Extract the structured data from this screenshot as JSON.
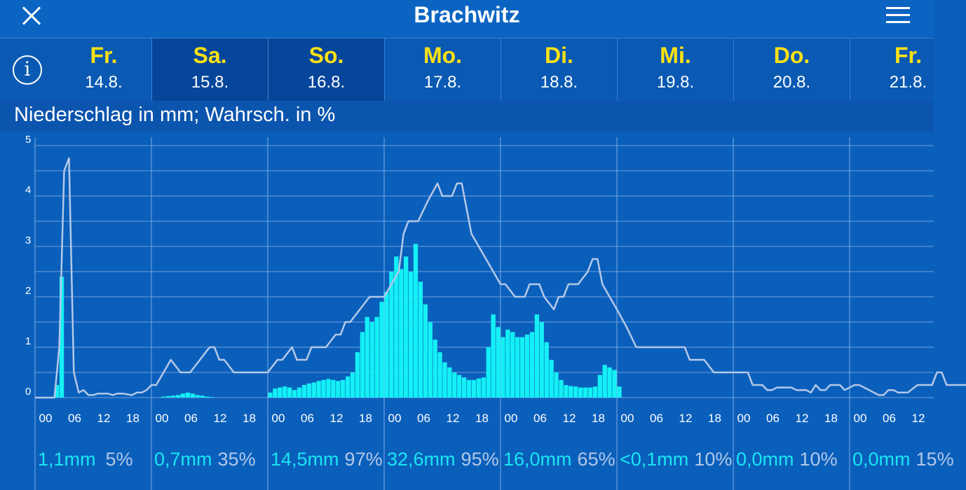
{
  "header": {
    "title": "Brachwitz",
    "close_icon": "close-icon",
    "menu_icon": "hamburger-menu-icon"
  },
  "info_icon": "info-icon",
  "days": [
    {
      "weekday": "Fr.",
      "date": "14.8.",
      "selected": false
    },
    {
      "weekday": "Sa.",
      "date": "15.8.",
      "selected": true
    },
    {
      "weekday": "So.",
      "date": "16.8.",
      "selected": true
    },
    {
      "weekday": "Mo.",
      "date": "17.8.",
      "selected": false
    },
    {
      "weekday": "Di.",
      "date": "18.8.",
      "selected": false
    },
    {
      "weekday": "Mi.",
      "date": "19.8.",
      "selected": false
    },
    {
      "weekday": "Do.",
      "date": "20.8.",
      "selected": false
    },
    {
      "weekday": "Fr.",
      "date": "21.8.",
      "selected": false
    }
  ],
  "subtitle": "Niederschlag in mm; Wahrsch. in %",
  "colors": {
    "bar": "#14f0f5",
    "line": "#b4c8e8",
    "background": "#0a5fbb",
    "weekday": "#ffe114"
  },
  "chart_data": {
    "type": "bar",
    "ylim": [
      0,
      5
    ],
    "yticks": [
      "0",
      "1",
      "2",
      "3",
      "4",
      "5"
    ],
    "xtick_labels": [
      "00",
      "06",
      "12",
      "18"
    ],
    "hours_total": 192,
    "bars": {
      "name": "Niederschlag",
      "start_hour": 0,
      "step_hours": 1,
      "values": [
        0,
        0,
        0,
        0,
        0.25,
        2.4,
        0,
        0,
        0,
        0,
        0,
        0,
        0,
        0,
        0,
        0,
        0,
        0,
        0,
        0,
        0,
        0,
        0,
        0,
        0,
        0,
        0.02,
        0.03,
        0.04,
        0.05,
        0.08,
        0.1,
        0.08,
        0.05,
        0.04,
        0.02,
        0.01,
        0,
        0,
        0,
        0,
        0,
        0,
        0,
        0,
        0,
        0,
        0,
        0.1,
        0.18,
        0.2,
        0.22,
        0.2,
        0.15,
        0.2,
        0.25,
        0.28,
        0.3,
        0.33,
        0.35,
        0.37,
        0.35,
        0.33,
        0.35,
        0.42,
        0.5,
        0.9,
        1.3,
        1.6,
        1.5,
        1.6,
        1.9,
        2.1,
        2.5,
        2.8,
        2.55,
        2.8,
        2.5,
        3.05,
        2.3,
        1.85,
        1.5,
        1.15,
        0.9,
        0.7,
        0.6,
        0.5,
        0.45,
        0.4,
        0.35,
        0.35,
        0.38,
        0.4,
        1.0,
        1.65,
        1.4,
        1.2,
        1.35,
        1.3,
        1.2,
        1.2,
        1.25,
        1.3,
        1.65,
        1.5,
        1.1,
        0.75,
        0.5,
        0.35,
        0.25,
        0.23,
        0.22,
        0.2,
        0.2,
        0.2,
        0.22,
        0.45,
        0.65,
        0.6,
        0.55,
        0.22
      ]
    },
    "probability_line": {
      "name": "Wahrscheinlichkeit",
      "unit_note": "mm-axis scale",
      "points": [
        [
          0,
          0
        ],
        [
          4,
          0
        ],
        [
          5,
          1
        ],
        [
          6,
          4.5
        ],
        [
          7,
          4.75
        ],
        [
          8,
          0.5
        ],
        [
          9,
          0.1
        ],
        [
          10,
          0.15
        ],
        [
          11,
          0.05
        ],
        [
          12,
          0.05
        ],
        [
          13,
          0.08
        ],
        [
          14,
          0.08
        ],
        [
          15,
          0.08
        ],
        [
          16,
          0.05
        ],
        [
          17,
          0.08
        ],
        [
          18,
          0.08
        ],
        [
          20,
          0.05
        ],
        [
          21,
          0.1
        ],
        [
          22,
          0.1
        ],
        [
          23,
          0.15
        ],
        [
          24,
          0.25
        ],
        [
          25,
          0.25
        ],
        [
          28,
          0.75
        ],
        [
          30,
          0.5
        ],
        [
          32,
          0.5
        ],
        [
          36,
          1.0
        ],
        [
          37,
          1.0
        ],
        [
          38,
          0.75
        ],
        [
          39,
          0.75
        ],
        [
          41,
          0.5
        ],
        [
          48,
          0.5
        ],
        [
          50,
          0.75
        ],
        [
          51,
          0.75
        ],
        [
          53,
          1.0
        ],
        [
          54,
          0.75
        ],
        [
          56,
          0.75
        ],
        [
          57,
          1.0
        ],
        [
          60,
          1.0
        ],
        [
          62,
          1.25
        ],
        [
          63,
          1.25
        ],
        [
          64,
          1.5
        ],
        [
          65,
          1.5
        ],
        [
          67,
          1.75
        ],
        [
          69,
          2.0
        ],
        [
          72,
          2.0
        ],
        [
          75,
          2.5
        ],
        [
          76,
          3.25
        ],
        [
          77,
          3.5
        ],
        [
          79,
          3.5
        ],
        [
          81,
          3.9
        ],
        [
          83,
          4.25
        ],
        [
          84,
          4.0
        ],
        [
          86,
          4.0
        ],
        [
          87,
          4.25
        ],
        [
          88,
          4.25
        ],
        [
          89,
          3.75
        ],
        [
          90,
          3.25
        ],
        [
          93,
          2.75
        ],
        [
          96,
          2.25
        ],
        [
          97,
          2.25
        ],
        [
          99,
          2.0
        ],
        [
          100,
          2.0
        ],
        [
          101,
          2.0
        ],
        [
          102,
          2.25
        ],
        [
          104,
          2.25
        ],
        [
          105,
          2.0
        ],
        [
          107,
          1.75
        ],
        [
          108,
          2.0
        ],
        [
          109,
          2.0
        ],
        [
          110,
          2.25
        ],
        [
          112,
          2.25
        ],
        [
          114,
          2.5
        ],
        [
          115,
          2.75
        ],
        [
          116,
          2.75
        ],
        [
          117,
          2.25
        ],
        [
          120,
          1.75
        ],
        [
          122,
          1.4
        ],
        [
          124,
          1.0
        ],
        [
          129,
          1.0
        ],
        [
          133,
          1.0
        ],
        [
          134,
          1.0
        ],
        [
          135,
          0.75
        ],
        [
          138,
          0.75
        ],
        [
          140,
          0.5
        ],
        [
          144,
          0.5
        ],
        [
          147,
          0.5
        ],
        [
          148,
          0.25
        ],
        [
          150,
          0.25
        ],
        [
          151,
          0.15
        ],
        [
          152,
          0.15
        ],
        [
          153,
          0.2
        ],
        [
          156,
          0.2
        ],
        [
          157,
          0.15
        ],
        [
          159,
          0.15
        ],
        [
          160,
          0.1
        ],
        [
          161,
          0.25
        ],
        [
          162,
          0.15
        ],
        [
          163,
          0.15
        ],
        [
          164,
          0.25
        ],
        [
          165,
          0.25
        ],
        [
          166,
          0.25
        ],
        [
          167,
          0.15
        ],
        [
          169,
          0.25
        ],
        [
          170,
          0.25
        ],
        [
          172,
          0.15
        ],
        [
          174,
          0.05
        ],
        [
          175,
          0.05
        ],
        [
          176,
          0.15
        ],
        [
          177,
          0.15
        ],
        [
          178,
          0.1
        ],
        [
          180,
          0.1
        ],
        [
          182,
          0.25
        ],
        [
          183,
          0.25
        ],
        [
          184,
          0.25
        ],
        [
          185,
          0.25
        ],
        [
          186,
          0.5
        ],
        [
          187,
          0.5
        ],
        [
          188,
          0.25
        ],
        [
          192,
          0.25
        ]
      ]
    },
    "day_totals": [
      {
        "amount": "1,1mm",
        "prob": "5%"
      },
      {
        "amount": "0,7mm",
        "prob": "35%"
      },
      {
        "amount": "14,5mm",
        "prob": "97%"
      },
      {
        "amount": "32,6mm",
        "prob": "95%"
      },
      {
        "amount": "16,0mm",
        "prob": "65%"
      },
      {
        "amount": "<0,1mm",
        "prob": "10%"
      },
      {
        "amount": "0,0mm",
        "prob": "10%"
      },
      {
        "amount": "0,0mm",
        "prob": "15%"
      }
    ]
  }
}
